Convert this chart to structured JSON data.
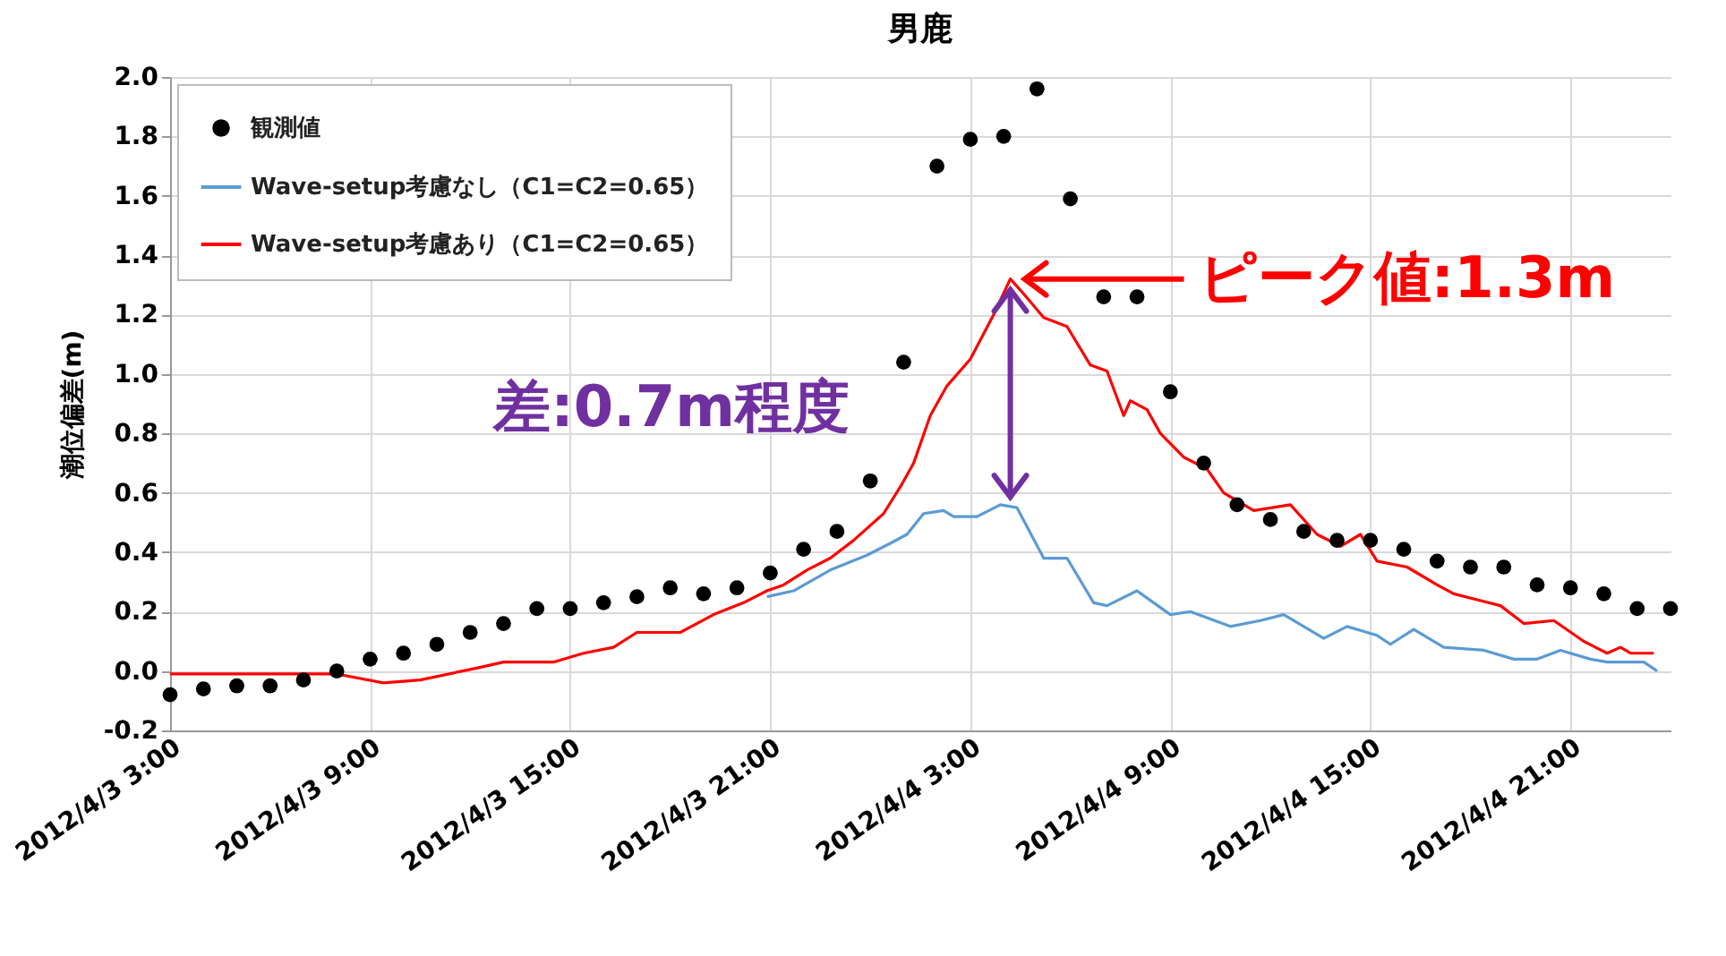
{
  "chart_data": {
    "type": "line",
    "title": "男鹿",
    "ylabel": "潮位偏差(m)",
    "xlim": [
      "2012-04-03T03:00",
      "2012-04-05T00:00"
    ],
    "xticks": [
      {
        "value": "2012-04-03T03:00",
        "label": "2012/4/3 3:00"
      },
      {
        "value": "2012-04-03T09:00",
        "label": "2012/4/3 9:00"
      },
      {
        "value": "2012-04-03T15:00",
        "label": "2012/4/3 15:00"
      },
      {
        "value": "2012-04-03T21:00",
        "label": "2012/4/3 21:00"
      },
      {
        "value": "2012-04-04T03:00",
        "label": "2012/4/4 3:00"
      },
      {
        "value": "2012-04-04T09:00",
        "label": "2012/4/4 9:00"
      },
      {
        "value": "2012-04-04T15:00",
        "label": "2012/4/4 15:00"
      },
      {
        "value": "2012-04-04T21:00",
        "label": "2012/4/4 21:00"
      }
    ],
    "ylim": [
      -0.2,
      2.0
    ],
    "yticks": [
      -0.2,
      {
        "value": 0,
        "label": "0.0"
      },
      0.2,
      0.4,
      0.6,
      0.8,
      {
        "value": 1,
        "label": "1.0"
      },
      1.2,
      1.4,
      1.6,
      1.8,
      {
        "value": 2,
        "label": "2.0"
      }
    ],
    "grid": true,
    "legend": "top left",
    "series": [
      {
        "name": "観測値",
        "type": "scatter",
        "marker": "circle",
        "color": "#000000",
        "x": [
          "2012-04-03T03:00",
          "2012-04-03T04:00",
          "2012-04-03T05:00",
          "2012-04-03T06:00",
          "2012-04-03T07:00",
          "2012-04-03T08:00",
          "2012-04-03T09:00",
          "2012-04-03T10:00",
          "2012-04-03T11:00",
          "2012-04-03T12:00",
          "2012-04-03T13:00",
          "2012-04-03T14:00",
          "2012-04-03T15:00",
          "2012-04-03T16:00",
          "2012-04-03T17:00",
          "2012-04-03T18:00",
          "2012-04-03T19:00",
          "2012-04-03T20:00",
          "2012-04-03T21:00",
          "2012-04-03T22:00",
          "2012-04-03T23:00",
          "2012-04-04T00:00",
          "2012-04-04T01:00",
          "2012-04-04T02:00",
          "2012-04-04T03:00",
          "2012-04-04T04:00",
          "2012-04-04T05:00",
          "2012-04-04T06:00",
          "2012-04-04T07:00",
          "2012-04-04T08:00",
          "2012-04-04T09:00",
          "2012-04-04T10:00",
          "2012-04-04T11:00",
          "2012-04-04T12:00",
          "2012-04-04T13:00",
          "2012-04-04T14:00",
          "2012-04-04T15:00",
          "2012-04-04T16:00",
          "2012-04-04T17:00",
          "2012-04-04T18:00",
          "2012-04-04T19:00",
          "2012-04-04T20:00",
          "2012-04-04T21:00",
          "2012-04-04T22:00",
          "2012-04-04T23:00",
          "2012-04-05T00:00"
        ],
        "values": [
          -0.08,
          -0.06,
          -0.05,
          -0.05,
          -0.03,
          0.0,
          0.04,
          0.06,
          0.09,
          0.13,
          0.16,
          0.21,
          0.21,
          0.23,
          0.25,
          0.28,
          0.26,
          0.28,
          0.33,
          0.41,
          0.47,
          0.64,
          1.04,
          1.7,
          1.79,
          1.8,
          1.96,
          1.59,
          1.26,
          1.26,
          0.94,
          0.7,
          0.56,
          0.51,
          0.47,
          0.44,
          0.44,
          0.41,
          0.37,
          0.35,
          0.35,
          0.29,
          0.28,
          0.26,
          0.21,
          0.21
        ]
      },
      {
        "name": "Wave-setup考慮なし（C1=C2=0.65）",
        "color": "#5b9bd5",
        "x": [
          "2012-04-03T20:54",
          "2012-04-03T21:42",
          "2012-04-03T22:48",
          "2012-04-03T23:54",
          "2012-04-04T00:36",
          "2012-04-04T01:06",
          "2012-04-04T01:36",
          "2012-04-04T02:12",
          "2012-04-04T02:30",
          "2012-04-04T03:12",
          "2012-04-04T03:54",
          "2012-04-04T04:24",
          "2012-04-04T05:12",
          "2012-04-04T05:54",
          "2012-04-04T06:42",
          "2012-04-04T07:06",
          "2012-04-04T08:00",
          "2012-04-04T09:00",
          "2012-04-04T09:36",
          "2012-04-04T10:48",
          "2012-04-04T11:42",
          "2012-04-04T12:24",
          "2012-04-04T13:36",
          "2012-04-04T14:18",
          "2012-04-04T15:12",
          "2012-04-04T15:36",
          "2012-04-04T16:18",
          "2012-04-04T17:12",
          "2012-04-04T18:24",
          "2012-04-04T19:18",
          "2012-04-04T20:00",
          "2012-04-04T20:42",
          "2012-04-04T21:36",
          "2012-04-04T22:06",
          "2012-04-04T23:12",
          "2012-04-04T23:36"
        ],
        "values": [
          0.25,
          0.27,
          0.34,
          0.39,
          0.43,
          0.46,
          0.53,
          0.54,
          0.52,
          0.52,
          0.56,
          0.55,
          0.38,
          0.38,
          0.23,
          0.22,
          0.27,
          0.19,
          0.2,
          0.15,
          0.17,
          0.19,
          0.11,
          0.15,
          0.12,
          0.09,
          0.14,
          0.08,
          0.07,
          0.04,
          0.04,
          0.07,
          0.04,
          0.03,
          0.03,
          0.0
        ]
      },
      {
        "name": "Wave-setup考慮あり（C1=C2=0.65）",
        "color": "#ff0000",
        "x": [
          "2012-04-03T03:00",
          "2012-04-03T08:00",
          "2012-04-03T09:24",
          "2012-04-03T10:30",
          "2012-04-03T12:12",
          "2012-04-03T13:00",
          "2012-04-03T14:30",
          "2012-04-03T15:24",
          "2012-04-03T16:18",
          "2012-04-03T17:00",
          "2012-04-03T17:42",
          "2012-04-03T18:18",
          "2012-04-03T19:18",
          "2012-04-03T20:12",
          "2012-04-03T20:54",
          "2012-04-03T21:24",
          "2012-04-03T22:06",
          "2012-04-03T22:48",
          "2012-04-03T23:30",
          "2012-04-04T00:24",
          "2012-04-04T00:54",
          "2012-04-04T01:18",
          "2012-04-04T01:48",
          "2012-04-04T02:18",
          "2012-04-04T03:00",
          "2012-04-04T03:42",
          "2012-04-04T04:12",
          "2012-04-04T04:36",
          "2012-04-04T05:12",
          "2012-04-04T05:54",
          "2012-04-04T06:36",
          "2012-04-04T07:06",
          "2012-04-04T07:36",
          "2012-04-04T07:48",
          "2012-04-04T08:18",
          "2012-04-04T08:42",
          "2012-04-04T09:24",
          "2012-04-04T10:06",
          "2012-04-04T10:36",
          "2012-04-04T11:30",
          "2012-04-04T12:36",
          "2012-04-04T13:24",
          "2012-04-04T14:06",
          "2012-04-04T14:42",
          "2012-04-04T15:12",
          "2012-04-04T16:06",
          "2012-04-04T17:00",
          "2012-04-04T17:30",
          "2012-04-04T18:12",
          "2012-04-04T18:54",
          "2012-04-04T19:36",
          "2012-04-04T20:30",
          "2012-04-04T21:24",
          "2012-04-04T22:06",
          "2012-04-04T22:30",
          "2012-04-04T22:48",
          "2012-04-04T23:30"
        ],
        "values": [
          -0.01,
          -0.01,
          -0.04,
          -0.03,
          0.01,
          0.03,
          0.03,
          0.06,
          0.08,
          0.13,
          0.13,
          0.13,
          0.19,
          0.23,
          0.27,
          0.29,
          0.34,
          0.38,
          0.44,
          0.53,
          0.62,
          0.7,
          0.86,
          0.96,
          1.05,
          1.2,
          1.32,
          1.27,
          1.19,
          1.16,
          1.03,
          1.01,
          0.86,
          0.91,
          0.88,
          0.8,
          0.72,
          0.68,
          0.6,
          0.54,
          0.56,
          0.46,
          0.42,
          0.46,
          0.37,
          0.35,
          0.29,
          0.26,
          0.24,
          0.22,
          0.16,
          0.17,
          0.1,
          0.06,
          0.08,
          0.06,
          0.06
        ]
      }
    ],
    "annotations": [
      "差:0.7m程度",
      "ピーク値:1.3m"
    ]
  }
}
